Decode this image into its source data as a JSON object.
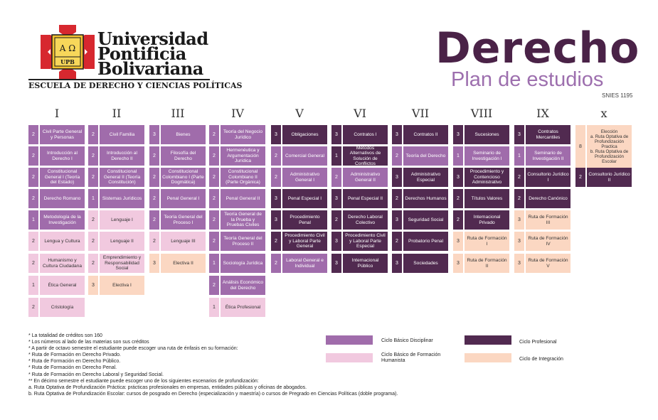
{
  "header": {
    "university_lines": [
      "Universidad",
      "Pontificia",
      "Bolivariana"
    ],
    "school": "ESCUELA DE DERECHO Y CIENCIAS POLÍTICAS",
    "title": "Derecho",
    "subtitle": "Plan de estudios",
    "snies": "SNIES 1195",
    "logo_text_top": "Α Ω",
    "logo_text_bottom": "UPB"
  },
  "colors": {
    "ciclo_basico_disciplinar": "#a06cab",
    "ciclo_basico_humanista": "#f1c9df",
    "ciclo_profesional": "#512a50",
    "ciclo_integracion": "#fbd7c2",
    "title": "#4a2247",
    "logo_red": "#d7282f",
    "logo_gold": "#f2c230"
  },
  "semesters": [
    {
      "label": "I",
      "courses": [
        {
          "credits": "2",
          "name": "Civil Parte General y Personas",
          "type": "cbd"
        },
        {
          "credits": "2",
          "name": "Introducción al Derecho I",
          "type": "cbd"
        },
        {
          "credits": "2",
          "name": "Constitucional General I (Teoría del Estado)",
          "type": "cbd"
        },
        {
          "credits": "2",
          "name": "Derecho Romano",
          "type": "cbd"
        },
        {
          "credits": "1",
          "name": "Metodología de la Investigación",
          "type": "cbd"
        },
        {
          "credits": "2",
          "name": "Lengua y Cultura",
          "type": "cbh"
        },
        {
          "credits": "2",
          "name": "Humanismo y Cultura Ciudadana",
          "type": "cbh"
        },
        {
          "credits": "1",
          "name": "Ética General",
          "type": "cbh"
        },
        {
          "credits": "2",
          "name": "Cristología",
          "type": "cbh"
        }
      ]
    },
    {
      "label": "II",
      "courses": [
        {
          "credits": "2",
          "name": "Civil Familia",
          "type": "cbd"
        },
        {
          "credits": "2",
          "name": "Introducción al Derecho II",
          "type": "cbd"
        },
        {
          "credits": "2",
          "name": "Constitucional General II (Teoría Constitución)",
          "type": "cbd"
        },
        {
          "credits": "1",
          "name": "Sistemas Jurídicos",
          "type": "cbd"
        },
        {
          "credits": "2",
          "name": "Lenguaje I",
          "type": "cbh"
        },
        {
          "credits": "2",
          "name": "Lenguaje II",
          "type": "cbh"
        },
        {
          "credits": "2",
          "name": "Emprendimiento y Responsabilidad Social",
          "type": "cbh"
        },
        {
          "credits": "3",
          "name": "Electiva I",
          "type": "ci"
        }
      ]
    },
    {
      "label": "III",
      "courses": [
        {
          "credits": "3",
          "name": "Bienes",
          "type": "cbd"
        },
        {
          "credits": "2",
          "name": "Filosofía del Derecho",
          "type": "cbd"
        },
        {
          "credits": "2",
          "name": "Constitucional Colombiano I (Parte Dogmática)",
          "type": "cbd"
        },
        {
          "credits": "2",
          "name": "Penal General I",
          "type": "cbd"
        },
        {
          "credits": "2",
          "name": "Teoría General del Proceso I",
          "type": "cbd"
        },
        {
          "credits": "2",
          "name": "Lenguaje III",
          "type": "cbh"
        },
        {
          "credits": "3",
          "name": "Electiva II",
          "type": "ci"
        }
      ]
    },
    {
      "label": "IV",
      "courses": [
        {
          "credits": "2",
          "name": "Teoría del Negocio Jurídico",
          "type": "cbd"
        },
        {
          "credits": "2",
          "name": "Hermenéutica y Argumentación Jurídica",
          "type": "cbd"
        },
        {
          "credits": "2",
          "name": "Constitucional Colombiano II (Parte Orgánica)",
          "type": "cbd"
        },
        {
          "credits": "2",
          "name": "Penal General II",
          "type": "cbd"
        },
        {
          "credits": "2",
          "name": "Teoría General de la Prueba y Pruebas Civiles",
          "type": "cbd"
        },
        {
          "credits": "2",
          "name": "Teoría General del Proceso II",
          "type": "cbd"
        },
        {
          "credits": "1",
          "name": "Sociología Jurídica",
          "type": "cbd"
        },
        {
          "credits": "2",
          "name": "Análisis Económico del Derecho",
          "type": "cbd"
        },
        {
          "credits": "1",
          "name": "Ética Profesional",
          "type": "cbh"
        }
      ]
    },
    {
      "label": "V",
      "courses": [
        {
          "credits": "3",
          "name": "Obligaciones",
          "type": "cp"
        },
        {
          "credits": "2",
          "name": "Comercial General",
          "type": "cbd"
        },
        {
          "credits": "2",
          "name": "Administrativo General I",
          "type": "cbd"
        },
        {
          "credits": "3",
          "name": "Penal Especial I",
          "type": "cp"
        },
        {
          "credits": "3",
          "name": "Procedimiento Penal",
          "type": "cp"
        },
        {
          "credits": "2",
          "name": "Procedimiento Civil y Laboral Parte General",
          "type": "cp"
        },
        {
          "credits": "2",
          "name": "Laboral General e Individual",
          "type": "cbd"
        }
      ]
    },
    {
      "label": "VI",
      "courses": [
        {
          "credits": "3",
          "name": "Contratos I",
          "type": "cp"
        },
        {
          "credits": "1",
          "name": "Métodos Alternativos de Solución de Conflictos",
          "type": "cp"
        },
        {
          "credits": "2",
          "name": "Administrativo General II",
          "type": "cbd"
        },
        {
          "credits": "3",
          "name": "Penal Especial II",
          "type": "cp"
        },
        {
          "credits": "2",
          "name": "Derecho Laboral Colectivo",
          "type": "cp"
        },
        {
          "credits": "3",
          "name": "Procedimiento Civil y Laboral Parte Especial",
          "type": "cp"
        },
        {
          "credits": "3",
          "name": "Internacional Público",
          "type": "cp"
        }
      ]
    },
    {
      "label": "VII",
      "courses": [
        {
          "credits": "3",
          "name": "Contratos II",
          "type": "cp"
        },
        {
          "credits": "2",
          "name": "Teoría del Derecho",
          "type": "cbd"
        },
        {
          "credits": "3",
          "name": "Administrativo Especial",
          "type": "cp"
        },
        {
          "credits": "2",
          "name": "Derechos Humanos",
          "type": "cp"
        },
        {
          "credits": "3",
          "name": "Seguridad Social",
          "type": "cp"
        },
        {
          "credits": "2",
          "name": "Probatorio Penal",
          "type": "cp"
        },
        {
          "credits": "3",
          "name": "Sociedades",
          "type": "cp"
        }
      ]
    },
    {
      "label": "VIII",
      "courses": [
        {
          "credits": "3",
          "name": "Sucesiones",
          "type": "cp"
        },
        {
          "credits": "1",
          "name": "Seminario de Investigación I",
          "type": "cbd"
        },
        {
          "credits": "3",
          "name": "Procedimiento y Contencioso Administrativo",
          "type": "cp"
        },
        {
          "credits": "2",
          "name": "Títulos Valores",
          "type": "cp"
        },
        {
          "credits": "2",
          "name": "Internacional Privado",
          "type": "cp"
        },
        {
          "credits": "3",
          "name": "Ruta de Formación I",
          "type": "ci"
        },
        {
          "credits": "3",
          "name": "Ruta de Formación II",
          "type": "ci"
        }
      ]
    },
    {
      "label": "IX",
      "courses": [
        {
          "credits": "3",
          "name": "Contratos Mercantiles",
          "type": "cp"
        },
        {
          "credits": "1",
          "name": "Seminario de Investigación II",
          "type": "cbd"
        },
        {
          "credits": "2",
          "name": "Consultorio Jurídico I",
          "type": "cp"
        },
        {
          "credits": "2",
          "name": "Derecho Canónico",
          "type": "cp"
        },
        {
          "credits": "3",
          "name": "Ruta de Formación III",
          "type": "ci"
        },
        {
          "credits": "3",
          "name": "Ruta de Formación IV",
          "type": "ci"
        },
        {
          "credits": "3",
          "name": "Ruta de Formación V",
          "type": "ci"
        }
      ]
    },
    {
      "label": "x",
      "courses": [
        {
          "credits": "8",
          "name": "Elección\na. Ruta Optativa de Profundización Practica\nb. Ruta Optativa de Profundización Escolar",
          "type": "ci"
        },
        {
          "credits": "2",
          "name": "Consultorio Jurídico II",
          "type": "cp"
        }
      ]
    }
  ],
  "notes": [
    "* La totalidad de créditos son 160",
    "* Los números al lado de las materias son sus créditos",
    "* A partir de octavo semestre el estudiante puede escoger una ruta de énfasis en su formación:",
    "* Ruta de Formación en Derecho Privado.",
    "* Ruta de Formación en Derecho Público.",
    "* Ruta de Formación en Derecho Penal.",
    "* Ruta de Formación en Derecho Laboral y Seguridad Social.",
    "** En décimo semestre el estudiante puede escoger uno de los siguientes escenarios de profundización:",
    "a. Ruta Optativa de Profundización Práctica: prácticas profesionales en empresas, entidades públicas y oficinas de abogados.",
    "b. Ruta Optativa de Profundización Escolar: cursos de posgrado en Derecho (especialización y maestría) o cursos de Pregrado en Ciencias Políticas (doble programa)."
  ],
  "legend": [
    {
      "label": "Ciclo Básico Disciplinar",
      "type": "cbd"
    },
    {
      "label": "Ciclo Profesional",
      "type": "cp"
    },
    {
      "label": "Ciclo Básico de Formación Humanista",
      "type": "cbh"
    },
    {
      "label": "Ciclo de Integración",
      "type": "ci"
    }
  ]
}
